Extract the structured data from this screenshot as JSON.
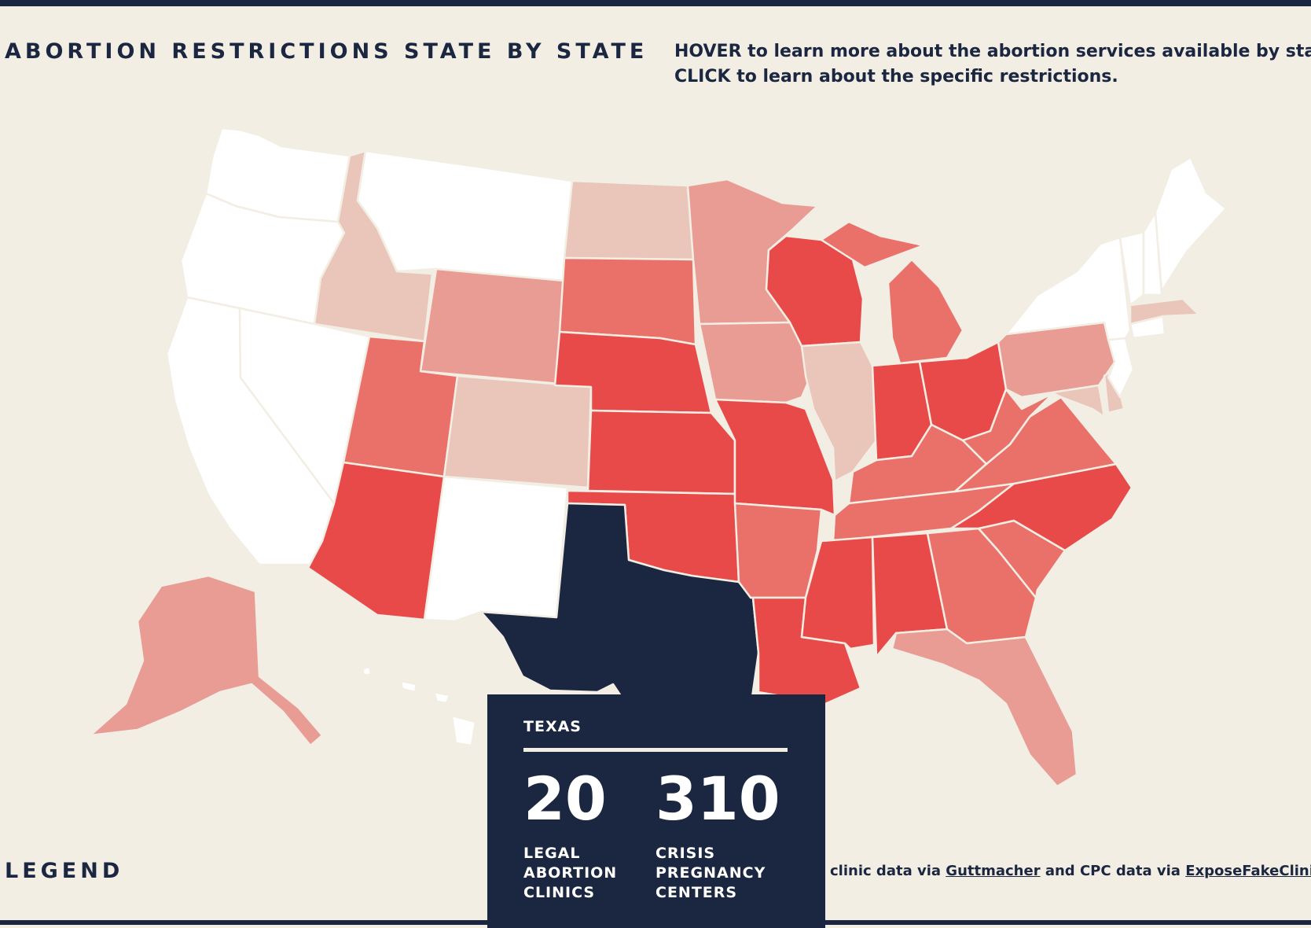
{
  "header": {
    "title": "ABORTION RESTRICTIONS STATE BY STATE",
    "instructions": [
      "HOVER to learn more about the abortion services available by state.",
      "CLICK to learn about the specific restrictions."
    ]
  },
  "colors": {
    "background": "#f3eee4",
    "navy": "#1b2740",
    "level0": "#ffffff",
    "level1": "#e9c6b9",
    "level2": "#e99c93",
    "level3": "#e9716a",
    "level4": "#e84a49"
  },
  "states": [
    {
      "id": "WA",
      "level": 0
    },
    {
      "id": "OR",
      "level": 0
    },
    {
      "id": "CA",
      "level": 0
    },
    {
      "id": "NV",
      "level": 0
    },
    {
      "id": "MT",
      "level": 0
    },
    {
      "id": "NM",
      "level": 0
    },
    {
      "id": "NY",
      "level": 0
    },
    {
      "id": "VT",
      "level": 0
    },
    {
      "id": "NH",
      "level": 0
    },
    {
      "id": "ME",
      "level": 0
    },
    {
      "id": "NJ",
      "level": 0
    },
    {
      "id": "CT",
      "level": 0
    },
    {
      "id": "ID",
      "level": 1
    },
    {
      "id": "CO",
      "level": 1
    },
    {
      "id": "ND",
      "level": 1
    },
    {
      "id": "IL",
      "level": 1
    },
    {
      "id": "MA",
      "level": 1
    },
    {
      "id": "MD",
      "level": 1
    },
    {
      "id": "DE",
      "level": 1
    },
    {
      "id": "WY",
      "level": 2
    },
    {
      "id": "MN",
      "level": 2
    },
    {
      "id": "IA",
      "level": 2
    },
    {
      "id": "PA",
      "level": 2
    },
    {
      "id": "FL",
      "level": 2
    },
    {
      "id": "AK",
      "level": 2
    },
    {
      "id": "UT",
      "level": 3
    },
    {
      "id": "SD",
      "level": 3
    },
    {
      "id": "AR",
      "level": 3
    },
    {
      "id": "MI",
      "level": 3
    },
    {
      "id": "KY",
      "level": 3
    },
    {
      "id": "TN",
      "level": 3
    },
    {
      "id": "WV",
      "level": 3
    },
    {
      "id": "VA",
      "level": 3
    },
    {
      "id": "GA",
      "level": 3
    },
    {
      "id": "SC",
      "level": 3
    },
    {
      "id": "AZ",
      "level": 4
    },
    {
      "id": "NE",
      "level": 4
    },
    {
      "id": "KS",
      "level": 4
    },
    {
      "id": "OK",
      "level": 4
    },
    {
      "id": "MO",
      "level": 4
    },
    {
      "id": "LA",
      "level": 4
    },
    {
      "id": "MS",
      "level": 4
    },
    {
      "id": "AL",
      "level": 4
    },
    {
      "id": "WI",
      "level": 4
    },
    {
      "id": "IN",
      "level": 4
    },
    {
      "id": "OH",
      "level": 4
    },
    {
      "id": "NC",
      "level": 4
    },
    {
      "id": "TX",
      "level": "selected"
    },
    {
      "id": "HI",
      "level": 0
    }
  ],
  "tooltip": {
    "state": "TEXAS",
    "clinics": "20",
    "clinics_label": "LEGAL ABORTION CLINICS",
    "cpc": "310",
    "cpc_label": "CRISIS PREGNANCY CENTERS"
  },
  "legend": {
    "label": "LEGEND"
  },
  "source": {
    "prefix": "clinic data via ",
    "link1": "Guttmacher",
    "middle": " and CPC data via ",
    "link2": "ExposeFakeClinics.com"
  }
}
